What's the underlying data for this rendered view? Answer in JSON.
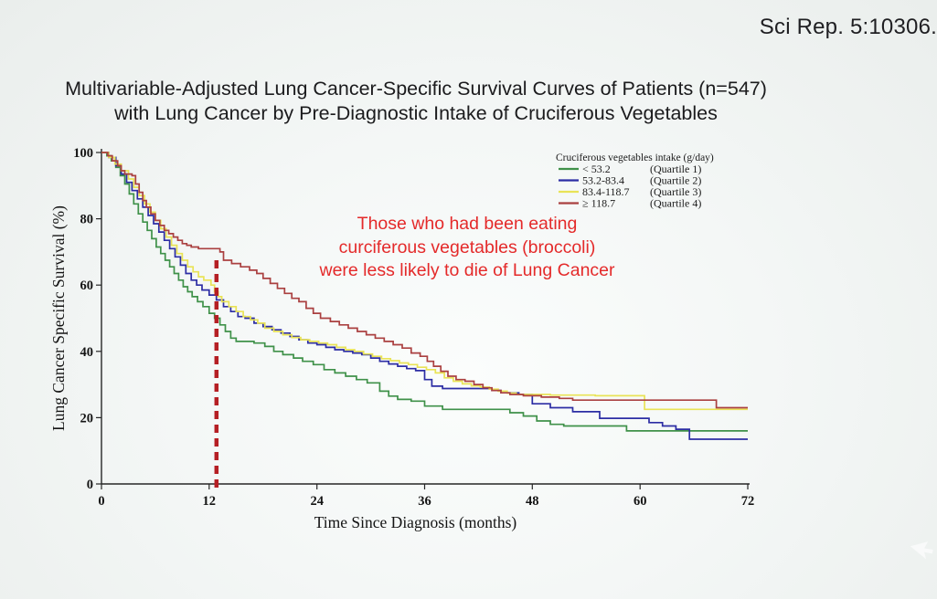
{
  "header": {
    "citation": "Sci Rep. 5:10306."
  },
  "title": {
    "line1": "Multivariable-Adjusted Lung Cancer-Specific Survival Curves of Patients (n=547)",
    "line2": "with Lung Cancer by Pre-Diagnostic Intake of Cruciferous Vegetables"
  },
  "annotation": {
    "lines": [
      "Those who had been eating",
      "curciferous vegetables (broccoli)",
      "were less likely to die of Lung Cancer"
    ],
    "color": "#e42a2a"
  },
  "icons": {
    "cursor": "white-arrow-cursor"
  },
  "chart_data": {
    "type": "line",
    "subtype": "kaplan-meier-step",
    "title": "",
    "xlabel": "Time Since Diagnosis (months)",
    "ylabel": "Lung Cancer Specific Survival (%)",
    "xlim": [
      0,
      72
    ],
    "ylim": [
      0,
      100
    ],
    "xticks": [
      0,
      12,
      24,
      36,
      48,
      60,
      72
    ],
    "yticks": [
      0,
      20,
      40,
      60,
      80,
      100
    ],
    "grid": false,
    "legend": {
      "title": "Cruciferous vegetables intake (g/day)",
      "position": "top-right",
      "entries": [
        {
          "label": "< 53.2",
          "quartile": "(Quartile 1)",
          "color": "#3f9149"
        },
        {
          "label": "53.2-83.4",
          "quartile": "(Quartile 2)",
          "color": "#2c2da4"
        },
        {
          "label": "83.4-118.7",
          "quartile": "(Quartile 3)",
          "color": "#e9e356"
        },
        {
          "label": "≥ 118.7",
          "quartile": "(Quartile 4)",
          "color": "#aa4040"
        }
      ]
    },
    "reference_line": {
      "x": 12,
      "y_top": 69,
      "color": "#b51f24",
      "style": "dashed"
    },
    "series": [
      {
        "id": "quartile-1",
        "name": "< 53.2 (Quartile 1)",
        "color": "#3f9149",
        "points": [
          [
            0,
            100
          ],
          [
            0.6,
            99
          ],
          [
            1.1,
            97.5
          ],
          [
            1.6,
            95.5
          ],
          [
            2.1,
            93
          ],
          [
            2.6,
            90.5
          ],
          [
            3.1,
            87.5
          ],
          [
            3.6,
            84.5
          ],
          [
            4.1,
            81.5
          ],
          [
            4.6,
            79
          ],
          [
            5.1,
            76.5
          ],
          [
            5.6,
            74
          ],
          [
            6.1,
            71.5
          ],
          [
            6.6,
            69.5
          ],
          [
            7.1,
            67.5
          ],
          [
            7.6,
            65.5
          ],
          [
            8.1,
            63.5
          ],
          [
            8.6,
            61.5
          ],
          [
            9.1,
            59.5
          ],
          [
            9.6,
            58
          ],
          [
            10.1,
            56.5
          ],
          [
            10.7,
            55
          ],
          [
            11.3,
            53.5
          ],
          [
            12,
            51.5
          ],
          [
            12.6,
            50
          ],
          [
            13.2,
            48
          ],
          [
            13.8,
            46
          ],
          [
            14.4,
            44
          ],
          [
            15,
            43
          ],
          [
            17,
            42.5
          ],
          [
            18.2,
            41.5
          ],
          [
            19.2,
            40
          ],
          [
            20.2,
            39
          ],
          [
            21.4,
            38
          ],
          [
            22.4,
            37
          ],
          [
            23.6,
            36
          ],
          [
            24.8,
            34.5
          ],
          [
            26,
            33.5
          ],
          [
            27.2,
            32.5
          ],
          [
            28.4,
            31.5
          ],
          [
            29.6,
            30.5
          ],
          [
            31,
            28
          ],
          [
            32,
            26.5
          ],
          [
            33,
            25.5
          ],
          [
            34.5,
            25
          ],
          [
            36,
            23.5
          ],
          [
            38,
            22.5
          ],
          [
            45.5,
            21.5
          ],
          [
            47,
            20.5
          ],
          [
            48.5,
            19
          ],
          [
            50,
            18
          ],
          [
            51.5,
            17.5
          ],
          [
            58.5,
            16
          ],
          [
            72,
            16
          ]
        ]
      },
      {
        "id": "quartile-2",
        "name": "53.2-83.4 (Quartile 2)",
        "color": "#2c2da4",
        "points": [
          [
            0,
            100
          ],
          [
            0.8,
            98.5
          ],
          [
            1.6,
            96
          ],
          [
            2.2,
            93.5
          ],
          [
            2.8,
            91
          ],
          [
            3.4,
            88.5
          ],
          [
            4,
            86
          ],
          [
            4.6,
            83.5
          ],
          [
            5.2,
            81
          ],
          [
            5.8,
            78.5
          ],
          [
            6.4,
            76
          ],
          [
            7,
            73.5
          ],
          [
            7.6,
            71
          ],
          [
            8.2,
            68.5
          ],
          [
            8.8,
            66
          ],
          [
            9.4,
            63.5
          ],
          [
            10,
            61.5
          ],
          [
            10.6,
            60
          ],
          [
            11.2,
            58.5
          ],
          [
            12,
            57
          ],
          [
            12.8,
            55.5
          ],
          [
            13.6,
            53.5
          ],
          [
            14.4,
            52
          ],
          [
            15.2,
            50.5
          ],
          [
            16,
            50
          ],
          [
            17,
            48.5
          ],
          [
            18,
            47.5
          ],
          [
            19,
            46.5
          ],
          [
            20,
            45.5
          ],
          [
            21,
            44.5
          ],
          [
            22,
            43.5
          ],
          [
            23,
            42.5
          ],
          [
            24,
            42
          ],
          [
            25,
            41.2
          ],
          [
            26,
            40.5
          ],
          [
            27,
            40
          ],
          [
            28,
            39.5
          ],
          [
            29,
            39
          ],
          [
            30,
            38
          ],
          [
            31,
            37
          ],
          [
            32,
            36.2
          ],
          [
            33,
            35.5
          ],
          [
            34,
            34.8
          ],
          [
            35,
            34.2
          ],
          [
            36,
            31.5
          ],
          [
            36.8,
            29.5
          ],
          [
            38,
            28.8
          ],
          [
            43.5,
            28.2
          ],
          [
            44.5,
            27.5
          ],
          [
            46.5,
            27
          ],
          [
            48,
            24.2
          ],
          [
            50,
            23
          ],
          [
            52.5,
            21.8
          ],
          [
            55.5,
            19.8
          ],
          [
            61,
            18.5
          ],
          [
            62.5,
            17.5
          ],
          [
            64,
            16.5
          ],
          [
            65.5,
            13.5
          ],
          [
            72,
            13.5
          ]
        ]
      },
      {
        "id": "quartile-3",
        "name": "83.4-118.7 (Quartile 3)",
        "color": "#e9e356",
        "points": [
          [
            0,
            100
          ],
          [
            0.8,
            98.5
          ],
          [
            1.5,
            96.5
          ],
          [
            2.2,
            94.5
          ],
          [
            3,
            92
          ],
          [
            3.6,
            89.5
          ],
          [
            4.2,
            87
          ],
          [
            4.8,
            84.5
          ],
          [
            5.4,
            82
          ],
          [
            6,
            79.5
          ],
          [
            6.6,
            77
          ],
          [
            7.2,
            74.5
          ],
          [
            7.8,
            72
          ],
          [
            8.4,
            69.5
          ],
          [
            9,
            67.5
          ],
          [
            9.6,
            65.5
          ],
          [
            10.2,
            64
          ],
          [
            10.8,
            62.5
          ],
          [
            11.4,
            61.5
          ],
          [
            12.2,
            60
          ],
          [
            12.6,
            58
          ],
          [
            13,
            56.5
          ],
          [
            13.4,
            55
          ],
          [
            14.2,
            53.5
          ],
          [
            15,
            52
          ],
          [
            15.8,
            50.5
          ],
          [
            16.6,
            49.5
          ],
          [
            17.4,
            48.5
          ],
          [
            18.2,
            47
          ],
          [
            19.2,
            46
          ],
          [
            20.2,
            45
          ],
          [
            21.2,
            44.2
          ],
          [
            22.2,
            43.5
          ],
          [
            23.2,
            43
          ],
          [
            24.2,
            42.5
          ],
          [
            25.2,
            42
          ],
          [
            26.2,
            41.2
          ],
          [
            27.2,
            40.5
          ],
          [
            28.2,
            40
          ],
          [
            29.2,
            39.2
          ],
          [
            30.2,
            38.5
          ],
          [
            31.2,
            37.8
          ],
          [
            32.2,
            37.2
          ],
          [
            33.2,
            36.5
          ],
          [
            34.2,
            36
          ],
          [
            35.2,
            35.2
          ],
          [
            36.2,
            34.5
          ],
          [
            37.2,
            33.5
          ],
          [
            38.2,
            32
          ],
          [
            39.2,
            31
          ],
          [
            40.2,
            30.2
          ],
          [
            41.2,
            29.6
          ],
          [
            42.2,
            29.2
          ],
          [
            43.2,
            28.6
          ],
          [
            44.2,
            28
          ],
          [
            45.2,
            27.4
          ],
          [
            46.2,
            27
          ],
          [
            50,
            26.8
          ],
          [
            55,
            26.6
          ],
          [
            60.5,
            22.5
          ],
          [
            72,
            22.5
          ]
        ]
      },
      {
        "id": "quartile-4",
        "name": "≥ 118.7 (Quartile 4)",
        "color": "#aa4040",
        "points": [
          [
            0,
            100
          ],
          [
            0.7,
            99
          ],
          [
            1.2,
            97.5
          ],
          [
            1.8,
            96
          ],
          [
            2.2,
            94.5
          ],
          [
            2.6,
            93.5
          ],
          [
            3.4,
            93
          ],
          [
            3.8,
            90.5
          ],
          [
            4.2,
            88
          ],
          [
            4.6,
            85.5
          ],
          [
            5,
            83.5
          ],
          [
            5.5,
            81.5
          ],
          [
            6,
            79.5
          ],
          [
            6.5,
            78
          ],
          [
            7,
            76.5
          ],
          [
            7.5,
            75.5
          ],
          [
            8,
            74.5
          ],
          [
            8.5,
            73.5
          ],
          [
            9,
            72.5
          ],
          [
            9.5,
            72
          ],
          [
            10,
            71.5
          ],
          [
            10.8,
            71
          ],
          [
            13.2,
            70
          ],
          [
            13.6,
            67.5
          ],
          [
            14.5,
            66.5
          ],
          [
            15.5,
            65.5
          ],
          [
            16.5,
            64.5
          ],
          [
            17.3,
            63.5
          ],
          [
            18,
            62
          ],
          [
            18.8,
            60.5
          ],
          [
            19.6,
            59
          ],
          [
            20.4,
            57.5
          ],
          [
            21.2,
            56
          ],
          [
            22,
            55
          ],
          [
            22.8,
            53
          ],
          [
            23.6,
            51.5
          ],
          [
            24.4,
            50
          ],
          [
            25.5,
            49
          ],
          [
            26.5,
            48
          ],
          [
            27.5,
            47
          ],
          [
            28.5,
            46
          ],
          [
            29.5,
            45
          ],
          [
            30.5,
            44
          ],
          [
            31.5,
            43
          ],
          [
            32.5,
            42
          ],
          [
            33.5,
            41
          ],
          [
            34.5,
            39.5
          ],
          [
            35.5,
            38.5
          ],
          [
            36.3,
            37
          ],
          [
            37,
            35.5
          ],
          [
            37.8,
            34
          ],
          [
            38.6,
            32.5
          ],
          [
            39.5,
            31.5
          ],
          [
            40.5,
            31
          ],
          [
            41.5,
            30
          ],
          [
            42.5,
            29
          ],
          [
            43.5,
            28.2
          ],
          [
            44.5,
            27.5
          ],
          [
            45.5,
            27
          ],
          [
            47,
            26.6
          ],
          [
            49,
            26.2
          ],
          [
            51,
            25.8
          ],
          [
            52.5,
            25.3
          ],
          [
            68.5,
            23
          ],
          [
            72,
            23
          ]
        ]
      }
    ]
  }
}
